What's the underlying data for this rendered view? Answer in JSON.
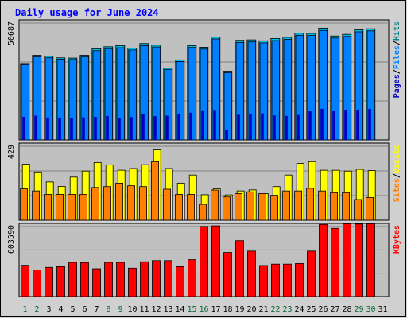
{
  "title": "Daily usage for June 2024",
  "colors": {
    "hits": "#00c0e8",
    "files": "#0080ff",
    "pages": "#0000c0",
    "visits": "#ffff00",
    "sites": "#ff8000",
    "kbytes": "#ff0000",
    "title": "#0000ff",
    "weekend_day": "#006633",
    "weekday_day": "#000000",
    "panel_bg": "#c0c0c0",
    "frame_bg": "#d0d0d0"
  },
  "chart_data": [
    {
      "type": "bar",
      "panel": "hits-files-pages",
      "y_max_label": "50687",
      "legend": [
        "Pages",
        "/",
        "Files",
        "/",
        "Hits"
      ],
      "categories": [
        "1",
        "2",
        "3",
        "4",
        "5",
        "6",
        "7",
        "8",
        "9",
        "10",
        "11",
        "12",
        "13",
        "14",
        "15",
        "16",
        "17",
        "18",
        "19",
        "20",
        "21",
        "22",
        "23",
        "24",
        "25",
        "26",
        "27",
        "28",
        "29",
        "30",
        "31"
      ],
      "ylim": [
        0,
        50687
      ],
      "series": [
        {
          "name": "Hits",
          "values": [
            33140,
            36700,
            36300,
            35600,
            35500,
            36700,
            39500,
            40400,
            40900,
            39800,
            41800,
            41100,
            31200,
            34700,
            40900,
            40200,
            44600,
            29800,
            43200,
            43400,
            43000,
            44000,
            44500,
            46300,
            46200,
            48500,
            45100,
            45800,
            47800,
            48200,
            null
          ]
        },
        {
          "name": "Files",
          "values": [
            32600,
            36000,
            35600,
            35000,
            34900,
            36000,
            38700,
            39600,
            40000,
            39000,
            40900,
            40300,
            30600,
            34000,
            40100,
            39400,
            43800,
            29200,
            42300,
            42500,
            42100,
            43100,
            43600,
            45400,
            45300,
            47500,
            44200,
            44900,
            46900,
            47300,
            null
          ]
        },
        {
          "name": "Pages",
          "values": [
            10000,
            10500,
            9700,
            9500,
            9600,
            9800,
            10000,
            10400,
            9300,
            9900,
            11200,
            10300,
            10500,
            11100,
            11800,
            12800,
            13000,
            4200,
            10900,
            11400,
            11500,
            10600,
            10400,
            10800,
            12500,
            13500,
            12600,
            13100,
            13100,
            13400,
            null
          ]
        }
      ]
    },
    {
      "type": "bar",
      "panel": "visits-sites",
      "y_max_label": "429",
      "legend": [
        "Sites",
        "/",
        "Visits"
      ],
      "categories": [
        "1",
        "2",
        "3",
        "4",
        "5",
        "6",
        "7",
        "8",
        "9",
        "10",
        "11",
        "12",
        "13",
        "14",
        "15",
        "16",
        "17",
        "18",
        "19",
        "20",
        "21",
        "22",
        "23",
        "24",
        "25",
        "26",
        "27",
        "28",
        "29",
        "30",
        "31"
      ],
      "ylim": [
        0,
        429
      ],
      "series": [
        {
          "name": "Visits",
          "values": [
            325,
            280,
            222,
            196,
            250,
            285,
            335,
            320,
            290,
            300,
            322,
            408,
            300,
            215,
            262,
            148,
            182,
            147,
            170,
            176,
            155,
            195,
            262,
            330,
            340,
            290,
            290,
            285,
            295,
            288,
            null
          ]
        },
        {
          "name": "Sites",
          "values": [
            182,
            170,
            150,
            150,
            150,
            150,
            190,
            195,
            215,
            200,
            195,
            340,
            180,
            150,
            150,
            92,
            175,
            135,
            155,
            165,
            155,
            145,
            170,
            170,
            185,
            170,
            160,
            160,
            120,
            132,
            null
          ]
        }
      ]
    },
    {
      "type": "bar",
      "panel": "kbytes",
      "y_max_label": "603590",
      "legend": [
        "KBytes"
      ],
      "categories": [
        "1",
        "2",
        "3",
        "4",
        "5",
        "6",
        "7",
        "8",
        "9",
        "10",
        "11",
        "12",
        "13",
        "14",
        "15",
        "16",
        "17",
        "18",
        "19",
        "20",
        "21",
        "22",
        "23",
        "24",
        "25",
        "26",
        "27",
        "28",
        "29",
        "30",
        "31"
      ],
      "ylim": [
        0,
        603590
      ],
      "series": [
        {
          "name": "KBytes",
          "values": [
            270000,
            230000,
            252000,
            258000,
            295000,
            293000,
            240000,
            295000,
            295000,
            245000,
            300000,
            310000,
            310000,
            258000,
            318000,
            605000,
            610000,
            380000,
            482000,
            392000,
            268000,
            280000,
            280000,
            285000,
            392000,
            622000,
            588000,
            628000,
            625000,
            628000,
            null
          ]
        }
      ]
    }
  ],
  "x_axis_days": [
    {
      "label": "1",
      "weekend": true
    },
    {
      "label": "2",
      "weekend": true
    },
    {
      "label": "3",
      "weekend": false
    },
    {
      "label": "4",
      "weekend": false
    },
    {
      "label": "5",
      "weekend": false
    },
    {
      "label": "6",
      "weekend": false
    },
    {
      "label": "7",
      "weekend": false
    },
    {
      "label": "8",
      "weekend": true
    },
    {
      "label": "9",
      "weekend": true
    },
    {
      "label": "10",
      "weekend": false
    },
    {
      "label": "11",
      "weekend": false
    },
    {
      "label": "12",
      "weekend": false
    },
    {
      "label": "13",
      "weekend": false
    },
    {
      "label": "14",
      "weekend": false
    },
    {
      "label": "15",
      "weekend": true
    },
    {
      "label": "16",
      "weekend": true
    },
    {
      "label": "17",
      "weekend": false
    },
    {
      "label": "18",
      "weekend": false
    },
    {
      "label": "19",
      "weekend": false
    },
    {
      "label": "20",
      "weekend": false
    },
    {
      "label": "21",
      "weekend": false
    },
    {
      "label": "22",
      "weekend": true
    },
    {
      "label": "23",
      "weekend": true
    },
    {
      "label": "24",
      "weekend": false
    },
    {
      "label": "25",
      "weekend": false
    },
    {
      "label": "26",
      "weekend": false
    },
    {
      "label": "27",
      "weekend": false
    },
    {
      "label": "28",
      "weekend": false
    },
    {
      "label": "29",
      "weekend": true
    },
    {
      "label": "30",
      "weekend": true
    },
    {
      "label": "31",
      "weekend": false
    }
  ]
}
